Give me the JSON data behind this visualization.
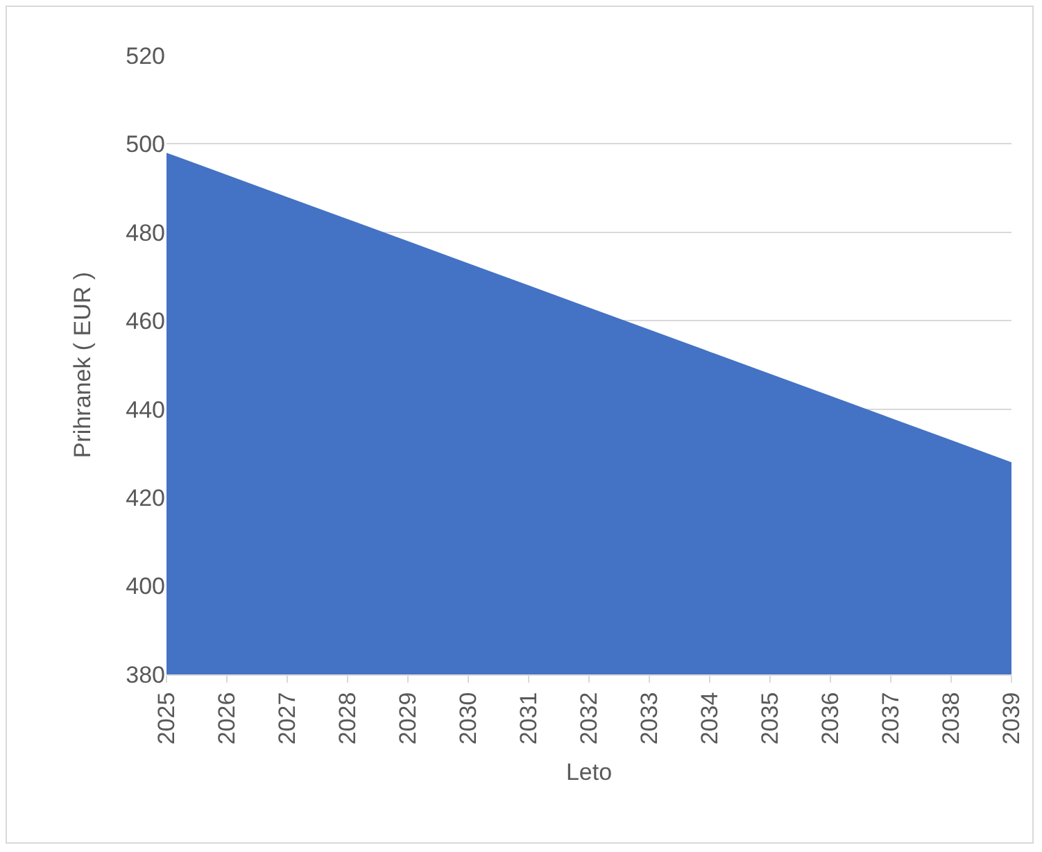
{
  "chart_data": {
    "type": "area",
    "xlabel": "Leto",
    "ylabel": "Prihranek ( EUR )",
    "categories": [
      "2025",
      "2026",
      "2027",
      "2028",
      "2029",
      "2030",
      "2031",
      "2032",
      "2033",
      "2034",
      "2035",
      "2036",
      "2037",
      "2038",
      "2039"
    ],
    "series": [
      {
        "color": "#4472c4",
        "values": [
          498,
          493,
          488,
          483,
          478,
          473,
          468,
          463,
          458,
          453,
          448,
          443,
          438,
          433,
          428
        ]
      }
    ],
    "ylim": [
      380,
      520
    ],
    "yticks": [
      380,
      400,
      420,
      440,
      460,
      480,
      500,
      520
    ],
    "grid": "y",
    "legend": false
  }
}
